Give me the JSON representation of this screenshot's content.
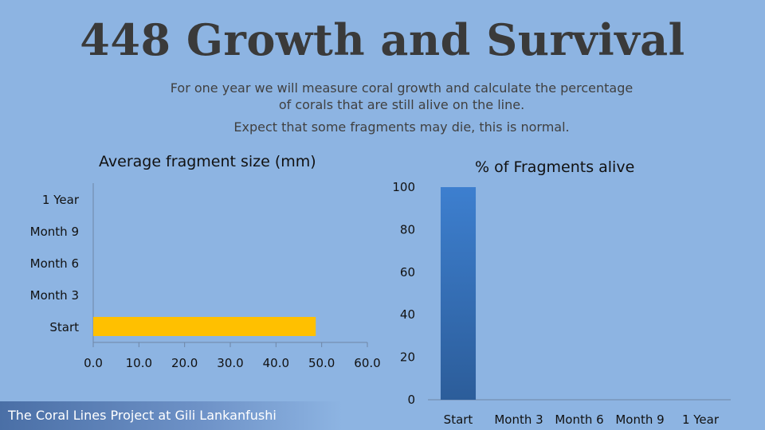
{
  "slide": {
    "title": "448 Growth and Survival",
    "subtitle_lines": [
      "For one year we will measure coral growth and calculate the percentage",
      "of corals that are still alive on the line.",
      "Expect that some fragments may die, this is normal."
    ],
    "footer": "The Coral Lines Project at Gili Lankanfushi"
  },
  "colors": {
    "background": "#8db4e2",
    "bar_fill": "#ffc000",
    "column_fill": "#3a78c4",
    "axis": "#6f86a6"
  },
  "chart_data": [
    {
      "type": "bar",
      "orientation": "horizontal",
      "title": "Average fragment size (mm)",
      "categories": [
        "Start",
        "Month 3",
        "Month 6",
        "Month 9",
        "1 Year"
      ],
      "values": [
        48.7,
        null,
        null,
        null,
        null
      ],
      "xlim": [
        0,
        60
      ],
      "xticks": [
        "0.0",
        "10.0",
        "20.0",
        "30.0",
        "40.0",
        "50.0",
        "60.0"
      ],
      "grid": false
    },
    {
      "type": "bar",
      "orientation": "vertical",
      "title": "% of Fragments alive",
      "categories": [
        "Start",
        "Month 3",
        "Month 6",
        "Month 9",
        "1 Year"
      ],
      "values": [
        100,
        null,
        null,
        null,
        null
      ],
      "ylim": [
        0,
        100
      ],
      "yticks": [
        "0",
        "20",
        "40",
        "60",
        "80",
        "100"
      ],
      "grid": false
    }
  ]
}
